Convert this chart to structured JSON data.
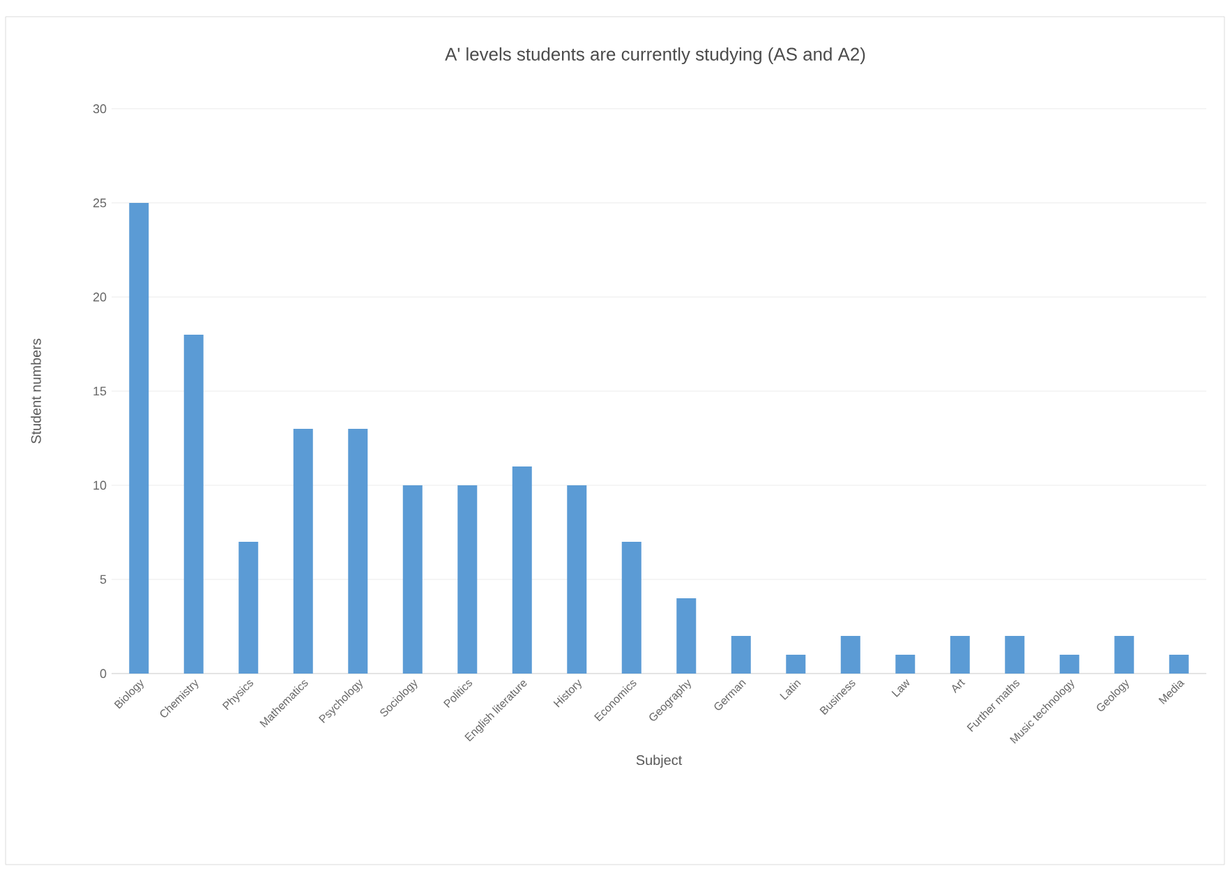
{
  "chart_data": {
    "type": "bar",
    "title": "A' levels students are currently studying (AS and A2)",
    "xlabel": "Subject",
    "ylabel": "Student numbers",
    "categories": [
      "Biology",
      "Chemistry",
      "Physics",
      "Mathematics",
      "Psychology",
      "Sociology",
      "Politics",
      "English literature",
      "History",
      "Economics",
      "Geography",
      "German",
      "Latin",
      "Business",
      "Law",
      "Art",
      "Further maths",
      "Music technology",
      "Geology",
      "Media"
    ],
    "values": [
      25,
      18,
      7,
      13,
      13,
      10,
      10,
      11,
      10,
      7,
      4,
      2,
      1,
      2,
      1,
      2,
      2,
      1,
      2,
      1
    ],
    "color": "#5b9bd5",
    "ylim": [
      0,
      30
    ],
    "yticks": [
      0,
      5,
      10,
      15,
      20,
      25,
      30
    ],
    "grid": "y"
  }
}
